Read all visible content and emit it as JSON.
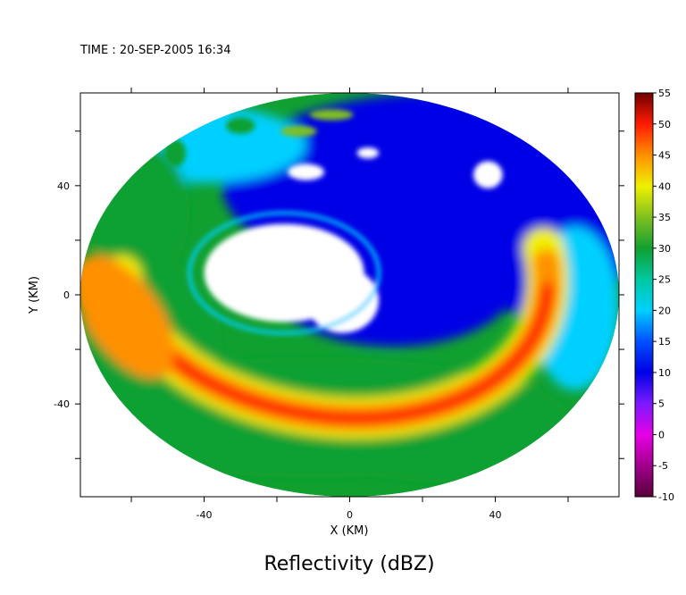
{
  "header": {
    "time_label": "TIME : 20-SEP-2005 16:34"
  },
  "chart_data": {
    "type": "heatmap",
    "title": "Reflectivity (dBZ)",
    "xlabel": "X (KM)",
    "ylabel": "Y (KM)",
    "xlim": [
      -74,
      74
    ],
    "ylim": [
      -74,
      74
    ],
    "x_ticks": [
      {
        "value": -40,
        "label": "-40"
      },
      {
        "value": 0,
        "label": "0"
      },
      {
        "value": 40,
        "label": "40"
      }
    ],
    "y_ticks": [
      {
        "value": 40,
        "label": "40"
      },
      {
        "value": 0,
        "label": "0"
      },
      {
        "value": -40,
        "label": "-40"
      }
    ],
    "minor_tick_step": 20,
    "grid": false,
    "data_domain": {
      "shape": "circle",
      "center_km": [
        0,
        0
      ],
      "radius_km": 74
    },
    "colorbar": {
      "placement": "right",
      "min": -10,
      "max": 55,
      "tick_labels": [
        "55",
        "50",
        "45",
        "40",
        "35",
        "30",
        "25",
        "20",
        "15",
        "10",
        "5",
        "0",
        "-5",
        "-10"
      ],
      "stops": [
        {
          "value": -10,
          "color": "#5a003a"
        },
        {
          "value": -5,
          "color": "#a0008c"
        },
        {
          "value": 0,
          "color": "#e600e6"
        },
        {
          "value": 5,
          "color": "#7a1aff"
        },
        {
          "value": 10,
          "color": "#0000e6"
        },
        {
          "value": 15,
          "color": "#0050ff"
        },
        {
          "value": 20,
          "color": "#00d0ff"
        },
        {
          "value": 25,
          "color": "#00c8a0"
        },
        {
          "value": 30,
          "color": "#10a030"
        },
        {
          "value": 35,
          "color": "#80c020"
        },
        {
          "value": 40,
          "color": "#f0f000"
        },
        {
          "value": 45,
          "color": "#ff9000"
        },
        {
          "value": 50,
          "color": "#ff1a00"
        },
        {
          "value": 55,
          "color": "#700000"
        }
      ]
    },
    "features": [
      {
        "name": "rainband",
        "type": "spiral-arc",
        "peak_dbz": 50,
        "center_km": [
          2,
          12
        ],
        "radius_km": 46,
        "from_deg": 10,
        "to_deg": 160
      },
      {
        "name": "eye",
        "type": "region",
        "approx_center_km": [
          -15,
          5
        ],
        "value": "no-echo"
      },
      {
        "name": "stratiform",
        "type": "region",
        "approx_dbz": 10
      }
    ]
  }
}
